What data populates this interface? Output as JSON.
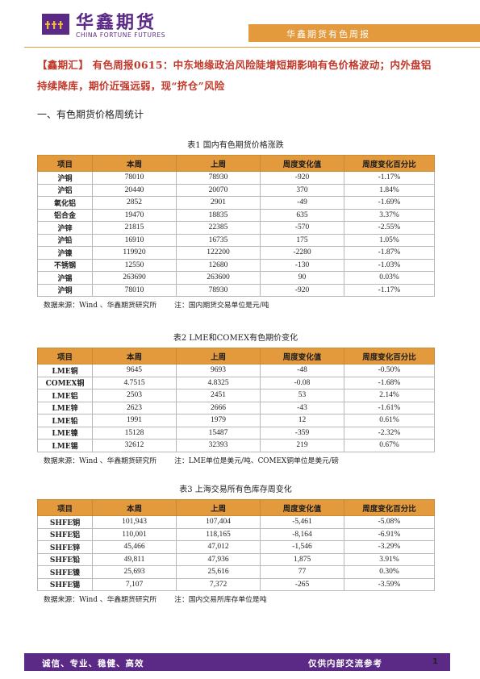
{
  "header": {
    "logo_cn": "华鑫期货",
    "logo_en": "CHINA FORTUNE FUTURES",
    "band_text": "华鑫期货有色周报"
  },
  "report_title": "【鑫期汇】 有色周报0615：中东地缘政治风险陡增短期影响有色价格波动；内外盘铝持续降库，期价近强远弱，现“挤仓”风险",
  "section_heading": "一、有色期货价格周统计",
  "tables": [
    {
      "caption": "表1  国内有色期货价格涨跌",
      "headers": [
        "项目",
        "本周",
        "上周",
        "周度变化值",
        "周度变化百分比"
      ],
      "rows": [
        [
          "沪铜",
          "78010",
          "78930",
          "-920",
          "-1.17%"
        ],
        [
          "沪铝",
          "20440",
          "20070",
          "370",
          "1.84%"
        ],
        [
          "氧化铝",
          "2852",
          "2901",
          "-49",
          "-1.69%"
        ],
        [
          "铝合金",
          "19470",
          "18835",
          "635",
          "3.37%"
        ],
        [
          "沪锌",
          "21815",
          "22385",
          "-570",
          "-2.55%"
        ],
        [
          "沪铅",
          "16910",
          "16735",
          "175",
          "1.05%"
        ],
        [
          "沪镍",
          "119920",
          "122200",
          "-2280",
          "-1.87%"
        ],
        [
          "不锈钢",
          "12550",
          "12680",
          "-130",
          "-1.03%"
        ],
        [
          "沪锡",
          "263690",
          "263600",
          "90",
          "0.03%"
        ],
        [
          "沪铜",
          "78010",
          "78930",
          "-920",
          "-1.17%"
        ]
      ],
      "source": "数据来源：Wind 、华鑫期货研究所",
      "note": "注：国内期货交易单位是元/吨"
    },
    {
      "caption": "表2 LME和COMEX有色期价变化",
      "headers": [
        "项目",
        "本周",
        "上周",
        "周度变化值",
        "周度变化百分比"
      ],
      "rows": [
        [
          "LME铜",
          "9645",
          "9693",
          "-48",
          "-0.50%"
        ],
        [
          "COMEX铜",
          "4.7515",
          "4.8325",
          "-0.08",
          "-1.68%"
        ],
        [
          "LME铝",
          "2503",
          "2451",
          "53",
          "2.14%"
        ],
        [
          "LME锌",
          "2623",
          "2666",
          "-43",
          "-1.61%"
        ],
        [
          "LME铅",
          "1991",
          "1979",
          "12",
          "0.61%"
        ],
        [
          "LME镍",
          "15128",
          "15487",
          "-359",
          "-2.32%"
        ],
        [
          "LME锡",
          "32612",
          "32393",
          "219",
          "0.67%"
        ]
      ],
      "source": "数据来源：Wind 、华鑫期货研究所",
      "note": "注：LME单位是美元/吨、COMEX铜单位是美元/磅"
    },
    {
      "caption": "表3 上海交易所有色库存周变化",
      "headers": [
        "项目",
        "本周",
        "上周",
        "周度变化值",
        "周度变化百分比"
      ],
      "rows": [
        [
          "SHFE铜",
          "101,943",
          "107,404",
          "-5,461",
          "-5.08%"
        ],
        [
          "SHFE铝",
          "110,001",
          "118,165",
          "-8,164",
          "-6.91%"
        ],
        [
          "SHFE锌",
          "45,466",
          "47,012",
          "-1,546",
          "-3.29%"
        ],
        [
          "SHFE铅",
          "49,811",
          "47,936",
          "1,875",
          "3.91%"
        ],
        [
          "SHFE镍",
          "25,693",
          "25,616",
          "77",
          "0.30%"
        ],
        [
          "SHFE锡",
          "7,107",
          "7,372",
          "-265",
          "-3.59%"
        ]
      ],
      "source": "数据来源：Wind 、华鑫期货研究所",
      "note": "注：国内交易所库存单位是吨"
    }
  ],
  "footer": {
    "left": "诚信、专业、稳健、高效",
    "right": "仅供内部交流参考",
    "page": "1"
  },
  "colors": {
    "brand_purple": "#5b2a86",
    "accent_orange": "#e39a3c",
    "title_red": "#c0392b"
  }
}
